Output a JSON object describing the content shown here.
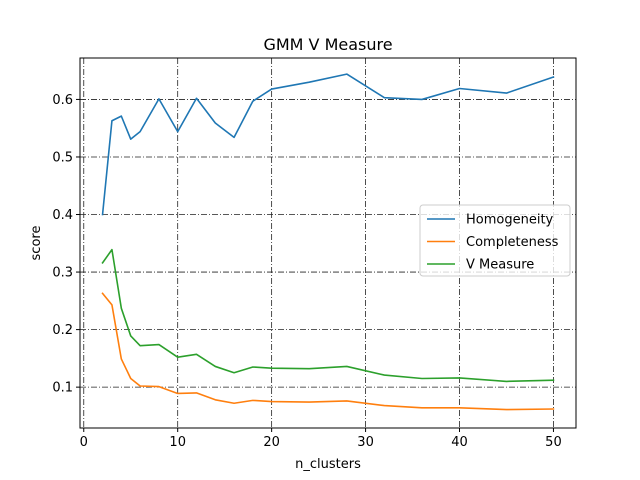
{
  "chart_data": {
    "type": "line",
    "title": "GMM V Measure",
    "xlabel": "n_clusters",
    "ylabel": "score",
    "xlim": [
      -0.4,
      52.4
    ],
    "ylim": [
      0.029,
      0.672
    ],
    "xticks": [
      0,
      10,
      20,
      30,
      40,
      50
    ],
    "yticks": [
      0.1,
      0.2,
      0.3,
      0.4,
      0.5,
      0.6
    ],
    "xtick_labels": [
      "0",
      "10",
      "20",
      "30",
      "40",
      "50"
    ],
    "ytick_labels": [
      "0.1",
      "0.2",
      "0.3",
      "0.4",
      "0.5",
      "0.6"
    ],
    "grid": true,
    "grid_style": "dash-dot",
    "legend_position": "center-right",
    "x": [
      2,
      3,
      4,
      5,
      6,
      8,
      10,
      12,
      14,
      16,
      18,
      20,
      24,
      28,
      32,
      36,
      40,
      45,
      50
    ],
    "series": [
      {
        "name": "Homogeneity",
        "color": "#1f77b4",
        "values": [
          0.4,
          0.563,
          0.571,
          0.531,
          0.544,
          0.601,
          0.544,
          0.602,
          0.559,
          0.534,
          0.597,
          0.618,
          0.63,
          0.644,
          0.603,
          0.6,
          0.619,
          0.611,
          0.639
        ]
      },
      {
        "name": "Completeness",
        "color": "#ff7f0e",
        "values": [
          0.263,
          0.243,
          0.149,
          0.115,
          0.102,
          0.101,
          0.089,
          0.09,
          0.078,
          0.072,
          0.077,
          0.075,
          0.074,
          0.076,
          0.068,
          0.064,
          0.064,
          0.061,
          0.062
        ]
      },
      {
        "name": "V Measure",
        "color": "#2ca02c",
        "values": [
          0.316,
          0.339,
          0.237,
          0.189,
          0.172,
          0.174,
          0.152,
          0.157,
          0.136,
          0.125,
          0.135,
          0.133,
          0.132,
          0.136,
          0.121,
          0.115,
          0.116,
          0.11,
          0.112
        ]
      }
    ]
  }
}
